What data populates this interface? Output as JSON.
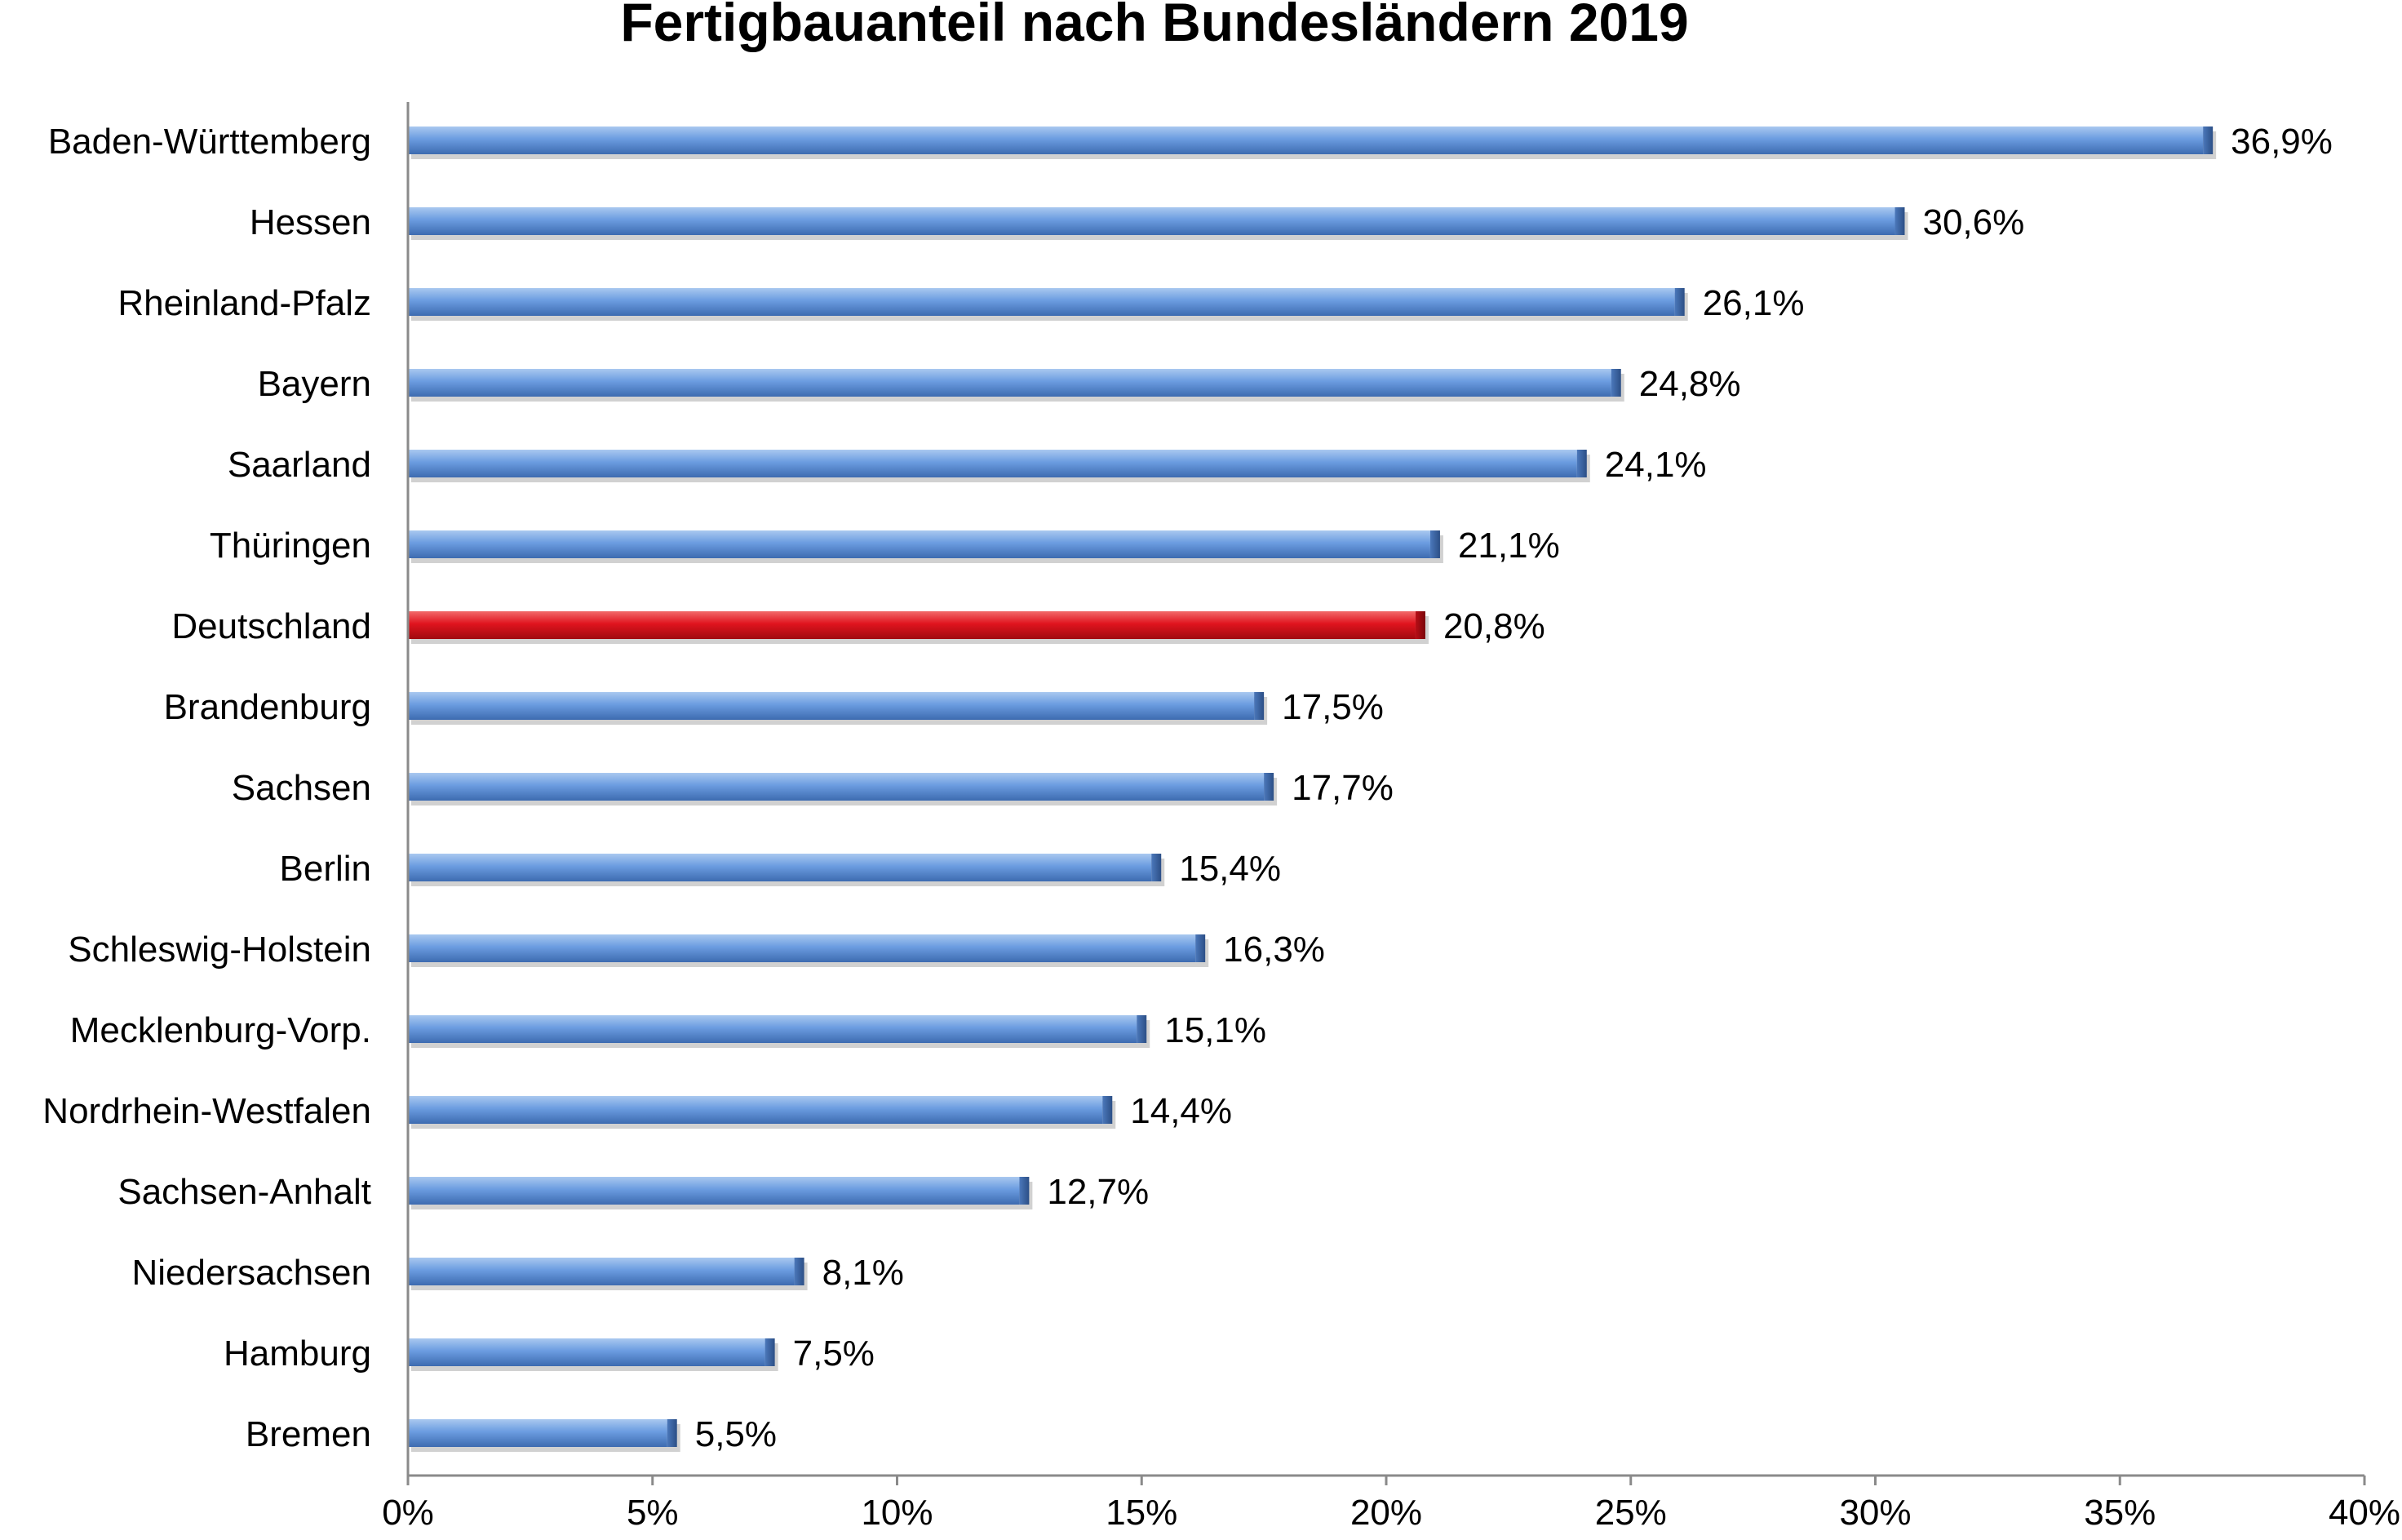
{
  "chart_data": {
    "type": "bar",
    "orientation": "horizontal",
    "title": "Fertigbauanteil nach Bundesländern 2019",
    "xlabel": "",
    "ylabel": "",
    "xlim": [
      0,
      40
    ],
    "x_ticks": [
      "0%",
      "5%",
      "10%",
      "15%",
      "20%",
      "25%",
      "30%",
      "35%",
      "40%"
    ],
    "grid": false,
    "legend": "none",
    "categories": [
      "Baden-Württemberg",
      "Hessen",
      "Rheinland-Pfalz",
      "Bayern",
      "Saarland",
      "Thüringen",
      "Deutschland",
      "Brandenburg",
      "Sachsen",
      "Berlin",
      "Schleswig-Holstein",
      "Mecklenburg-Vorp.",
      "Nordrhein-Westfalen",
      "Sachsen-Anhalt",
      "Niedersachsen",
      "Hamburg",
      "Bremen"
    ],
    "values": [
      36.9,
      30.6,
      26.1,
      24.8,
      24.1,
      21.1,
      20.8,
      17.5,
      17.7,
      15.4,
      16.3,
      15.1,
      14.4,
      12.7,
      8.1,
      7.5,
      5.5
    ],
    "value_labels": [
      "36,9%",
      "30,6%",
      "26,1%",
      "24,8%",
      "24,1%",
      "21,1%",
      "20,8%",
      "17,5%",
      "17,7%",
      "15,4%",
      "16,3%",
      "15,1%",
      "14,4%",
      "12,7%",
      "8,1%",
      "7,5%",
      "5,5%"
    ],
    "highlight_category": "Deutschland",
    "colors": {
      "bar": "#5b8fd6",
      "highlight": "#e0141e"
    }
  }
}
